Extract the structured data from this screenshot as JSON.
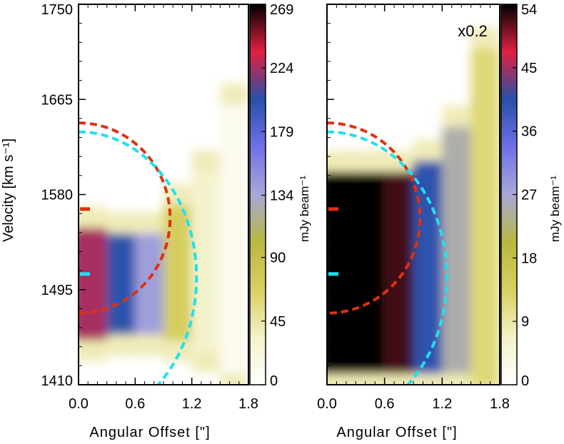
{
  "chart_data": [
    {
      "type": "heatmap",
      "panel": "left",
      "title": "",
      "scale_label": "",
      "xlabel": "Angular Offset [\"]",
      "ylabel": "Velocity [km s⁻¹]",
      "xlim": [
        0.0,
        1.8
      ],
      "ylim": [
        1410,
        1750
      ],
      "xticks": [
        "0.0",
        "0.6",
        "1.2",
        "1.8"
      ],
      "yticks": [
        "1410",
        "1495",
        "1580",
        "1665",
        "1750"
      ],
      "colorbar": {
        "label": "mJy beam⁻¹",
        "range": [
          0,
          269
        ],
        "ticks": [
          "0",
          "45",
          "90",
          "134",
          "179",
          "224",
          "269"
        ]
      },
      "emission": [
        {
          "offset": 0.0,
          "v_center": 1500,
          "v_width": 50,
          "peak": 225
        },
        {
          "offset": 0.3,
          "v_center": 1500,
          "v_width": 45,
          "peak": 200
        },
        {
          "offset": 0.6,
          "v_center": 1500,
          "v_width": 45,
          "peak": 140
        },
        {
          "offset": 0.9,
          "v_center": 1510,
          "v_width": 60,
          "peak": 70
        },
        {
          "offset": 1.2,
          "v_center": 1520,
          "v_width": 80,
          "peak": 30
        },
        {
          "offset": 1.5,
          "v_center": 1540,
          "v_width": 120,
          "peak": 10
        }
      ],
      "markers": [
        {
          "name": "red-marker",
          "velocity": 1567,
          "color": "#e03010"
        },
        {
          "name": "cyan-marker",
          "velocity": 1509,
          "color": "#20e0f0"
        }
      ],
      "ellipses": [
        {
          "name": "red-dashed-ellipse",
          "color": "#e03010",
          "v_center": 1559,
          "v_half_range": 85,
          "offset_max": 0.97
        },
        {
          "name": "cyan-dashed-ellipse",
          "color": "#20e0f0",
          "v_center": 1506,
          "v_half_range": 130,
          "offset_max": 1.25
        }
      ]
    },
    {
      "type": "heatmap",
      "panel": "right",
      "title": "",
      "scale_label": "x0.2",
      "xlabel": "Angular Offset [\"]",
      "ylabel": "",
      "xlim": [
        0.0,
        1.8
      ],
      "ylim": [
        1410,
        1750
      ],
      "xticks": [
        "0.0",
        "0.6",
        "1.2",
        "1.8"
      ],
      "yticks": [],
      "colorbar": {
        "label": "mJy beam⁻¹",
        "range": [
          0,
          54
        ],
        "ticks": [
          "0",
          "9",
          "18",
          "27",
          "36",
          "45",
          "54"
        ]
      },
      "emission": [
        {
          "offset": 0.0,
          "v_center": 1510,
          "v_width": 90,
          "peak": 54
        },
        {
          "offset": 0.3,
          "v_center": 1510,
          "v_width": 90,
          "peak": 54
        },
        {
          "offset": 0.6,
          "v_center": 1510,
          "v_width": 90,
          "peak": 52
        },
        {
          "offset": 0.9,
          "v_center": 1515,
          "v_width": 95,
          "peak": 40
        },
        {
          "offset": 1.2,
          "v_center": 1530,
          "v_width": 110,
          "peak": 25
        },
        {
          "offset": 1.5,
          "v_center": 1560,
          "v_width": 150,
          "peak": 12
        }
      ],
      "markers": [
        {
          "name": "red-marker",
          "velocity": 1567,
          "color": "#e03010"
        },
        {
          "name": "cyan-marker",
          "velocity": 1509,
          "color": "#20e0f0"
        }
      ],
      "ellipses": [
        {
          "name": "red-dashed-ellipse",
          "color": "#e03010",
          "v_center": 1559,
          "v_half_range": 85,
          "offset_max": 0.97
        },
        {
          "name": "cyan-dashed-ellipse",
          "color": "#20e0f0",
          "v_center": 1506,
          "v_half_range": 130,
          "offset_max": 1.25
        }
      ]
    }
  ],
  "colors": {
    "axis": "#000000",
    "colormap": [
      "#ffffff",
      "#f4f2c8",
      "#d8d060",
      "#b8b840",
      "#a8a8d8",
      "#7070e8",
      "#2850a8",
      "#e02040",
      "#000000"
    ]
  }
}
